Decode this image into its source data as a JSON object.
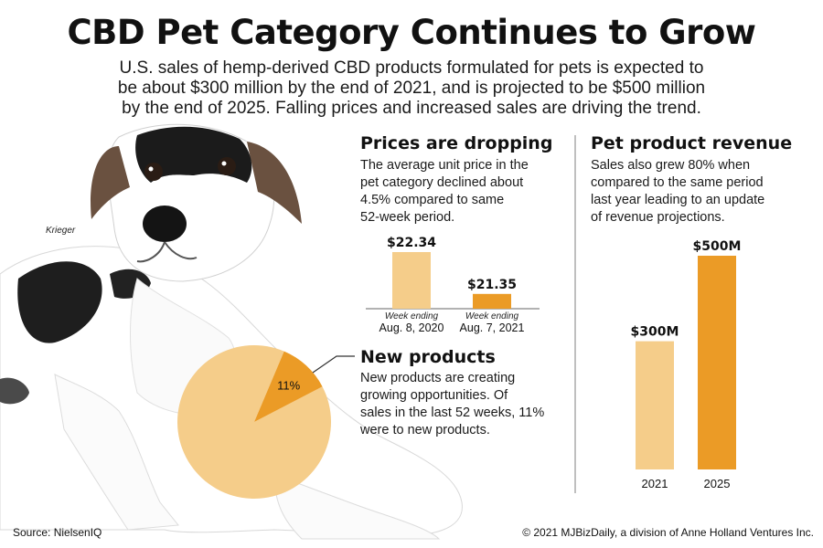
{
  "header": {
    "title": "CBD Pet Category Continues to Grow",
    "intro_lines": [
      "U.S. sales of hemp-derived CBD products formulated for pets is expected to",
      "be about $300 million by the end of 2021, and is projected to be $500 million",
      "by the end of 2025. Falling prices and increased sales are driving the trend."
    ]
  },
  "photo": {
    "caption": "Krieger"
  },
  "prices": {
    "heading": "Prices are dropping",
    "body_lines": [
      "The average unit price in the",
      "pet category declined about",
      "4.5% compared to same",
      "52-week period."
    ]
  },
  "new_products": {
    "heading": "New products",
    "body_lines": [
      "New products are creating",
      "growing opportunities. Of",
      "sales in the last 52 weeks, 11%",
      "were to new products."
    ]
  },
  "revenue": {
    "heading": "Pet product revenue",
    "body_lines": [
      "Sales also grew 80% when",
      "compared to the same period",
      "last year leading to an update",
      "of revenue projections."
    ]
  },
  "colors": {
    "light": "#f5cd8a",
    "dark": "#eb9b26",
    "divider": "#bfbfbf",
    "text": "#1a1a1a"
  },
  "chart_data": [
    {
      "type": "bar",
      "title": "Prices are dropping",
      "categories": [
        {
          "top": "Week ending",
          "bottom": "Aug. 8, 2020"
        },
        {
          "top": "Week ending",
          "bottom": "Aug. 7, 2021"
        }
      ],
      "values": [
        22.34,
        21.35
      ],
      "value_labels": [
        "$22.34",
        "$21.35"
      ],
      "ylim": [
        0,
        22.34
      ]
    },
    {
      "type": "pie",
      "title": "New products",
      "slices": [
        {
          "value": 11,
          "label": "11%"
        },
        {
          "value": 89,
          "label": ""
        }
      ]
    },
    {
      "type": "bar",
      "title": "Pet product revenue",
      "categories": [
        "2021",
        "2025"
      ],
      "values": [
        300,
        500
      ],
      "value_labels": [
        "$300M",
        "$500M"
      ],
      "ylim": [
        0,
        500
      ]
    }
  ],
  "footer": {
    "source": "Source: NielsenIQ",
    "copyright": "© 2021 MJBizDaily, a division of Anne Holland Ventures Inc."
  }
}
